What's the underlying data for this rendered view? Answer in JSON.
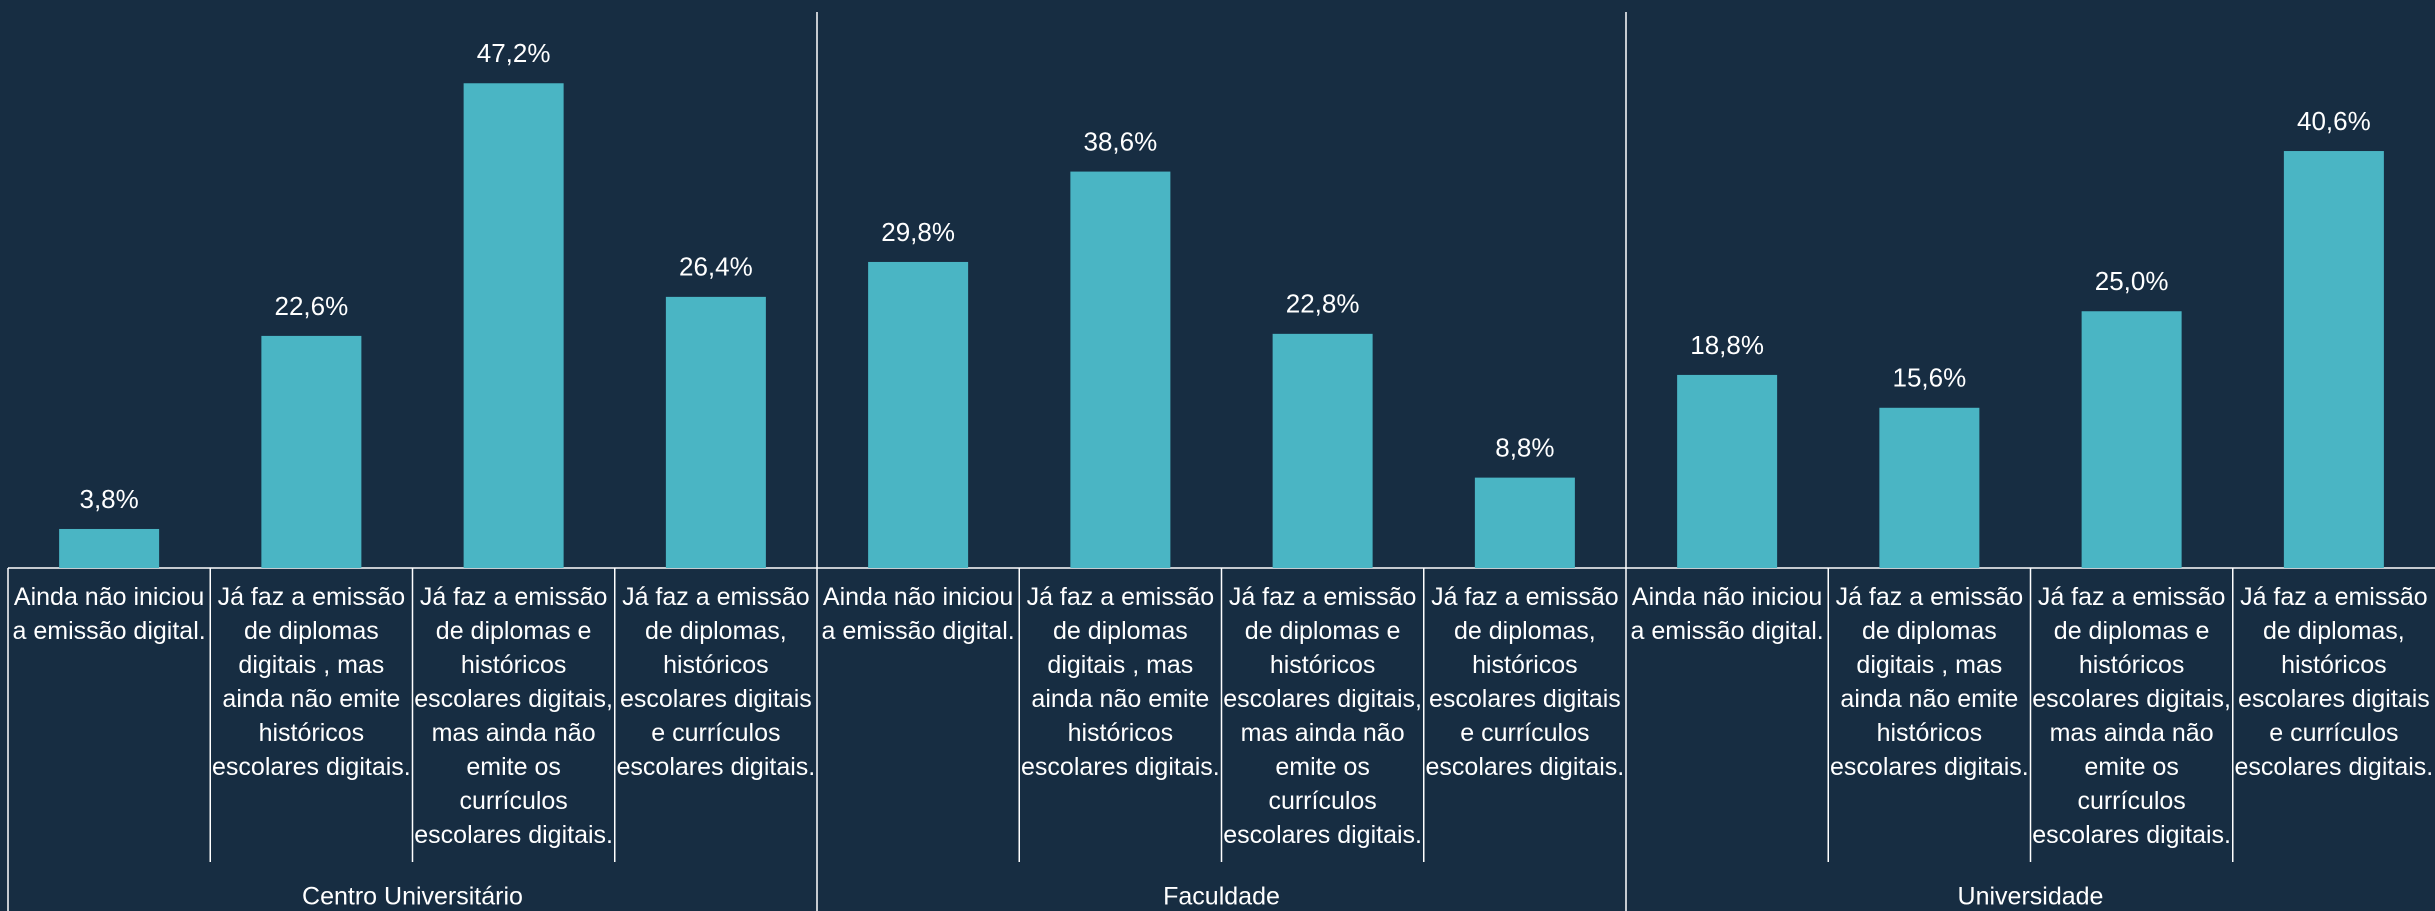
{
  "chart_data": {
    "type": "bar",
    "color": "#4ab5c4",
    "groups": [
      {
        "name": "Centro Universitário",
        "categories": [
          "Ainda não iniciou a emissão digital.",
          "Já faz a emissão de diplomas digitais , mas ainda não emite históricos escolares digitais.",
          "Já faz a emissão de diplomas e históricos escolares digitais, mas ainda não emite os currículos escolares digitais.",
          "Já faz a emissão de diplomas, históricos escolares digitais e currículos escolares digitais."
        ],
        "values": [
          3.8,
          22.6,
          47.2,
          26.4
        ],
        "value_labels": [
          "3,8%",
          "22,6%",
          "47,2%",
          "26,4%"
        ]
      },
      {
        "name": "Faculdade",
        "categories": [
          "Ainda não iniciou a emissão digital.",
          "Já faz a emissão de diplomas digitais , mas ainda não emite históricos escolares digitais.",
          "Já faz a emissão de diplomas e históricos escolares digitais, mas ainda não emite os currículos escolares digitais.",
          "Já faz a emissão de diplomas, históricos escolares digitais e currículos escolares digitais."
        ],
        "values": [
          29.8,
          38.6,
          22.8,
          8.8
        ],
        "value_labels": [
          "29,8%",
          "38,6%",
          "22,8%",
          "8,8%"
        ]
      },
      {
        "name": "Universidade",
        "categories": [
          "Ainda não iniciou a emissão digital.",
          "Já faz a emissão de diplomas digitais , mas ainda não emite históricos escolares digitais.",
          "Já faz a emissão de diplomas e históricos escolares digitais, mas ainda não emite os currículos escolares digitais.",
          "Já faz a emissão de diplomas, históricos escolares digitais e currículos escolares digitais."
        ],
        "values": [
          18.8,
          15.6,
          25.0,
          40.6
        ],
        "value_labels": [
          "18,8%",
          "15,6%",
          "25,0%",
          "40,6%"
        ]
      }
    ]
  }
}
